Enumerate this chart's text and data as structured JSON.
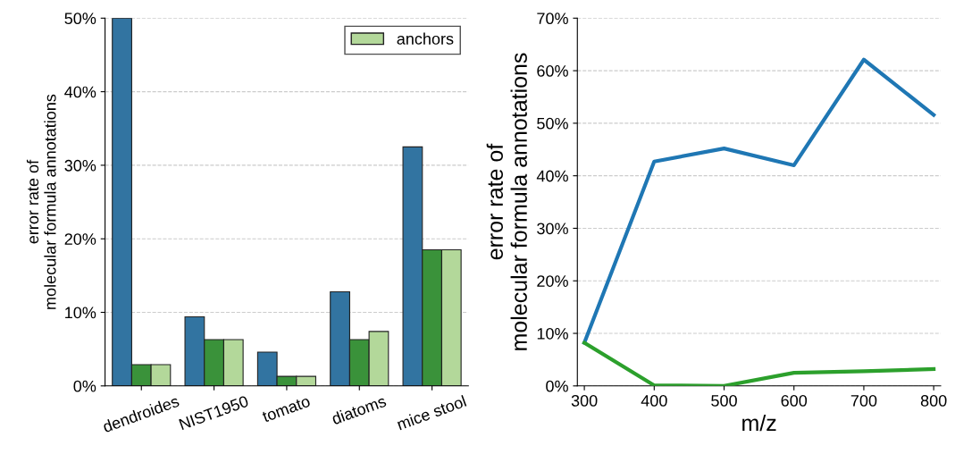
{
  "chart_data": [
    {
      "type": "bar",
      "ylabel": "error rate of\nmolecular formula annotations",
      "categories": [
        "dendroides",
        "NIST1950",
        "tomato",
        "diatoms",
        "mice stool"
      ],
      "series": [
        {
          "color": "#3274a1",
          "values": [
            50,
            9.4,
            4.6,
            12.8,
            32.5
          ]
        },
        {
          "color": "#3a923a",
          "values": [
            2.9,
            6.3,
            1.3,
            6.3,
            18.5
          ]
        },
        {
          "name": "anchors",
          "color": "#b3d89a",
          "values": [
            2.9,
            6.3,
            1.3,
            7.4,
            18.5
          ]
        }
      ],
      "ylim": [
        0,
        50
      ],
      "yticks": [
        {
          "value": 0,
          "label": "0%"
        },
        {
          "value": 10,
          "label": "10%"
        },
        {
          "value": 20,
          "label": "20%"
        },
        {
          "value": 30,
          "label": "30%"
        },
        {
          "value": 40,
          "label": "40%"
        },
        {
          "value": 50,
          "label": "50%"
        }
      ],
      "grid": "y",
      "legend": "top right"
    },
    {
      "type": "line",
      "xlabel": "m/z",
      "ylabel": "error rate of\nmolecular formula annotations",
      "x": [
        300,
        400,
        500,
        600,
        700,
        800
      ],
      "series": [
        {
          "color": "#1f77b4",
          "values": [
            8.2,
            42.7,
            45.2,
            42.0,
            62.1,
            51.6
          ]
        },
        {
          "color": "#2ca02c",
          "values": [
            8.2,
            0.1,
            0,
            2.5,
            2.8,
            3.2
          ]
        }
      ],
      "xlim": [
        290,
        810
      ],
      "xticks": [
        300,
        400,
        500,
        600,
        700,
        800
      ],
      "ylim": [
        0,
        70
      ],
      "yticks": [
        {
          "value": 0,
          "label": "0%"
        },
        {
          "value": 10,
          "label": "10%"
        },
        {
          "value": 20,
          "label": "20%"
        },
        {
          "value": 30,
          "label": "30%"
        },
        {
          "value": 40,
          "label": "40%"
        },
        {
          "value": 50,
          "label": "50%"
        },
        {
          "value": 60,
          "label": "60%"
        },
        {
          "value": 70,
          "label": "70%"
        }
      ],
      "grid": "y"
    }
  ]
}
